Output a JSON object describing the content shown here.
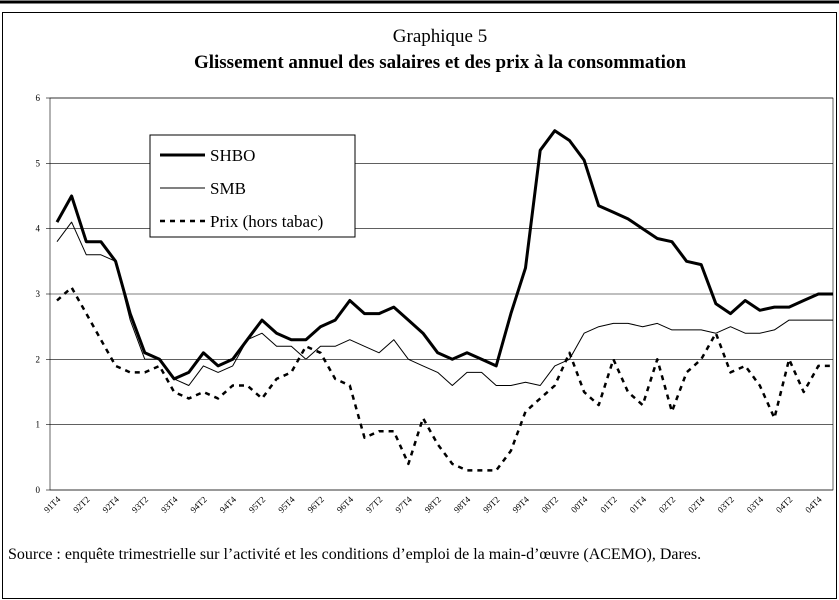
{
  "chart_data": {
    "type": "line",
    "title": "Graphique 5",
    "subtitle": "Glissement annuel des salaires et des prix à la consommation",
    "source": "Source : enquête trimestrielle sur l’activité et les conditions d’emploi de la main-d’œuvre (ACEMO), Dares.",
    "categories": [
      "91T4",
      null,
      "92T2",
      null,
      "92T4",
      null,
      "93T2",
      null,
      "93T4",
      null,
      "94T2",
      null,
      "94T4",
      null,
      "95T2",
      null,
      "95T4",
      null,
      "96T2",
      null,
      "96T4",
      null,
      "97T2",
      null,
      "97T4",
      null,
      "98T2",
      null,
      "98T4",
      null,
      "99T2",
      null,
      "99T4",
      null,
      "00T2",
      null,
      "00T4",
      null,
      "01T2",
      null,
      "01T4",
      null,
      "02T2",
      null,
      "02T4",
      null,
      "03T2",
      null,
      "03T4",
      null,
      "04T2",
      null,
      "04T4",
      null
    ],
    "series": [
      {
        "name": "SHBO",
        "color": "#000000",
        "line_width": 3,
        "dashed": false,
        "values": [
          4.1,
          4.5,
          3.8,
          3.8,
          3.5,
          2.7,
          2.1,
          2.0,
          1.7,
          1.8,
          2.1,
          1.9,
          2.0,
          2.3,
          2.6,
          2.4,
          2.3,
          2.3,
          2.5,
          2.6,
          2.9,
          2.7,
          2.7,
          2.8,
          2.6,
          2.4,
          2.1,
          2.0,
          2.1,
          2.0,
          1.9,
          2.7,
          3.4,
          5.2,
          5.5,
          5.35,
          5.05,
          4.35,
          4.25,
          4.15,
          4.0,
          3.85,
          3.8,
          3.5,
          3.45,
          2.85,
          2.7,
          2.9,
          2.75,
          2.8,
          2.8,
          2.9,
          3.0,
          3.0
        ]
      },
      {
        "name": "SMB",
        "color": "#000000",
        "line_width": 1,
        "dashed": false,
        "values": [
          3.8,
          4.1,
          3.6,
          3.6,
          3.5,
          2.6,
          2.0,
          2.0,
          1.7,
          1.6,
          1.9,
          1.8,
          1.9,
          2.3,
          2.4,
          2.2,
          2.2,
          2.0,
          2.2,
          2.2,
          2.3,
          2.2,
          2.1,
          2.3,
          2.0,
          1.9,
          1.8,
          1.6,
          1.8,
          1.8,
          1.6,
          1.6,
          1.65,
          1.6,
          1.9,
          2.0,
          2.4,
          2.5,
          2.55,
          2.55,
          2.5,
          2.55,
          2.45,
          2.45,
          2.45,
          2.4,
          2.5,
          2.4,
          2.4,
          2.45,
          2.6,
          2.6,
          2.6,
          2.6
        ]
      },
      {
        "name": "Prix (hors tabac)",
        "color": "#000000",
        "line_width": 2.5,
        "dashed": true,
        "values": [
          2.9,
          3.1,
          2.7,
          2.3,
          1.9,
          1.8,
          1.8,
          1.9,
          1.5,
          1.4,
          1.5,
          1.4,
          1.6,
          1.6,
          1.4,
          1.7,
          1.8,
          2.2,
          2.1,
          1.7,
          1.6,
          0.8,
          0.9,
          0.9,
          0.4,
          1.1,
          0.7,
          0.4,
          0.3,
          0.3,
          0.3,
          0.6,
          1.2,
          1.4,
          1.6,
          2.1,
          1.5,
          1.3,
          2.0,
          1.5,
          1.3,
          2.0,
          1.2,
          1.8,
          2.0,
          2.4,
          1.8,
          1.9,
          1.6,
          1.1,
          2.0,
          1.5,
          1.9,
          1.9
        ]
      }
    ],
    "ylim": [
      0,
      6
    ],
    "yticks": [
      0,
      1,
      2,
      3,
      4,
      5,
      6
    ],
    "grid": true,
    "legend": "top-left"
  }
}
